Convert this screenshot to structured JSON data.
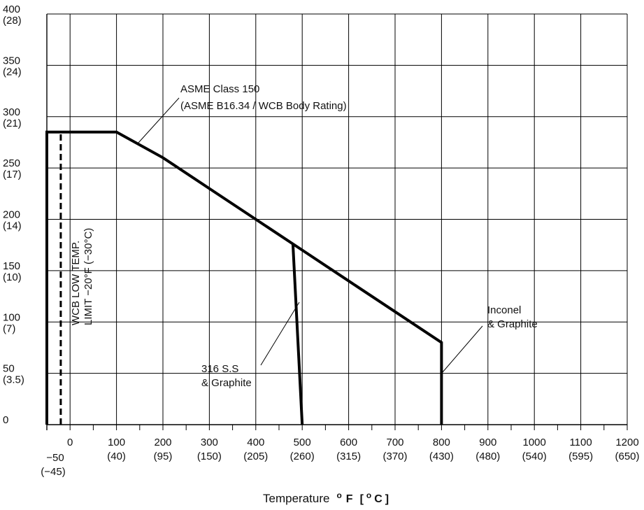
{
  "chart_data": {
    "type": "line",
    "title": "",
    "x_axis": {
      "range_f": [
        -50,
        1200
      ],
      "ticks": [
        {
          "f": "−50",
          "c": "(−45)"
        },
        {
          "f": "0",
          "c": ""
        },
        {
          "f": "100",
          "c": "(40)"
        },
        {
          "f": "200",
          "c": "(95)"
        },
        {
          "f": "300",
          "c": "(150)"
        },
        {
          "f": "400",
          "c": "(205)"
        },
        {
          "f": "500",
          "c": "(260)"
        },
        {
          "f": "600",
          "c": "(315)"
        },
        {
          "f": "700",
          "c": "(370)"
        },
        {
          "f": "800",
          "c": "(430)"
        },
        {
          "f": "900",
          "c": "(480)"
        },
        {
          "f": "1000",
          "c": "(540)"
        },
        {
          "f": "1100",
          "c": "(595)"
        },
        {
          "f": "1200",
          "c": "(650)"
        }
      ],
      "label_main": "Temperature",
      "label_unit_f": "F",
      "label_unit_c": "C",
      "label_degree": "o"
    },
    "y_axis": {
      "range": [
        0,
        400
      ],
      "ticks": [
        {
          "v": "400",
          "bar": "(28)"
        },
        {
          "v": "350",
          "bar": "(24)"
        },
        {
          "v": "300",
          "bar": "(21)"
        },
        {
          "v": "250",
          "bar": "(17)"
        },
        {
          "v": "200",
          "bar": "(14)"
        },
        {
          "v": "150",
          "bar": "(10)"
        },
        {
          "v": "100",
          "bar": "(7)"
        },
        {
          "v": "50",
          "bar": "(3.5)"
        },
        {
          "v": "0",
          "bar": ""
        }
      ]
    },
    "grid": true,
    "series": [
      {
        "name": "ASME Class 150 (ASME B16.34 / WCB Body Rating)",
        "style": "solid",
        "points": [
          [
            -50,
            0
          ],
          [
            -50,
            285
          ],
          [
            100,
            285
          ],
          [
            200,
            260
          ],
          [
            300,
            230
          ],
          [
            400,
            200
          ],
          [
            500,
            170
          ],
          [
            600,
            140
          ],
          [
            700,
            110
          ],
          [
            800,
            80
          ],
          [
            800,
            0
          ]
        ]
      },
      {
        "name": "316 S.S & Graphite",
        "style": "solid",
        "points": [
          [
            480,
            176
          ],
          [
            500,
            0
          ]
        ]
      },
      {
        "name": "WCB Low Temp. Limit −20°F (−30°C)",
        "style": "dashed",
        "points": [
          [
            -20,
            0
          ],
          [
            -20,
            285
          ]
        ]
      }
    ],
    "annotations": {
      "asme_line1": "ASME Class 150",
      "asme_line2": "(ASME B16.34 / WCB Body Rating)",
      "ss_line1": "316 S.S",
      "ss_line2": "& Graphite",
      "inconel_line1": "Inconel",
      "inconel_line2": "& Graphite",
      "wcb_line1": "WCB LOW TEMP.",
      "wcb_line2": "LIMIT −20°F (−30°C)"
    },
    "colors": {
      "line": "#000000",
      "grid": "#000000",
      "background": "#ffffff"
    }
  }
}
